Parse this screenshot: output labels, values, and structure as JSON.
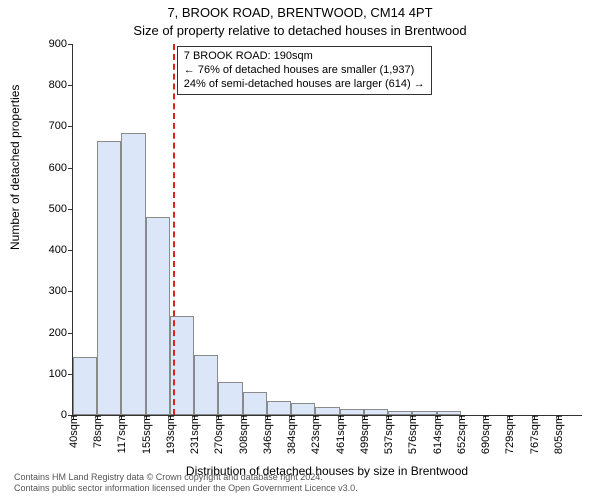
{
  "title": {
    "line1": "7, BROOK ROAD, BRENTWOOD, CM14 4PT",
    "line2": "Size of property relative to detached houses in Brentwood"
  },
  "ylabel": "Number of detached properties",
  "xlabel": "Distribution of detached houses by size in Brentwood",
  "chart": {
    "type": "bar",
    "ylim": [
      0,
      900
    ],
    "yticks": [
      0,
      100,
      200,
      300,
      400,
      500,
      600,
      700,
      800,
      900
    ],
    "xtick_labels": [
      "40sqm",
      "78sqm",
      "117sqm",
      "155sqm",
      "193sqm",
      "231sqm",
      "270sqm",
      "308sqm",
      "346sqm",
      "384sqm",
      "423sqm",
      "461sqm",
      "499sqm",
      "537sqm",
      "576sqm",
      "614sqm",
      "652sqm",
      "690sqm",
      "729sqm",
      "767sqm",
      "805sqm"
    ],
    "bar_values": [
      140,
      665,
      685,
      480,
      240,
      145,
      80,
      55,
      35,
      30,
      20,
      15,
      15,
      10,
      10,
      10,
      0,
      0,
      0,
      0,
      0
    ],
    "bar_color": "#dbe7f8",
    "bar_border_color": "#8a8a8a",
    "annotation": {
      "line1": "7 BROOK ROAD: 190sqm",
      "line2": "← 76% of detached houses are smaller (1,937)",
      "line3": "24% of semi-detached houses are larger (614) →"
    },
    "vline_x": 190,
    "vline_color": "#dd2222",
    "x_domain": [
      40,
      805
    ],
    "background_color": "#ffffff",
    "title_fontsize": 13,
    "label_fontsize": 12,
    "tick_fontsize": 11
  },
  "footer": {
    "line1": "Contains HM Land Registry data © Crown copyright and database right 2024.",
    "line2": "Contains public sector information licensed under the Open Government Licence v3.0."
  }
}
